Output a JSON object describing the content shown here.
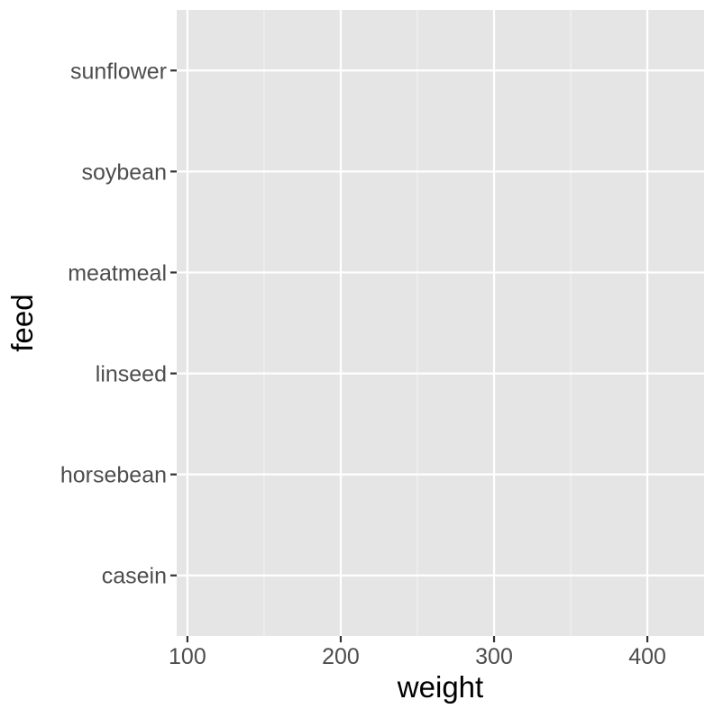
{
  "chart_data": {
    "type": "scatter",
    "title": "",
    "xlabel": "weight",
    "ylabel": "feed",
    "x_ticks": [
      100,
      200,
      300,
      400
    ],
    "xlim": [
      93,
      437
    ],
    "categories": [
      "casein",
      "horsebean",
      "linseed",
      "meatmeal",
      "soybean",
      "sunflower"
    ],
    "series": [],
    "grid": true,
    "legend": "none",
    "colors": {
      "panel_background": "#E5E5E5",
      "grid_major": "#FFFFFF",
      "grid_minor": "#F2F2F2",
      "tick_label": "#4D4D4D",
      "tick_mark": "#333333",
      "axis_title": "#000000"
    }
  }
}
